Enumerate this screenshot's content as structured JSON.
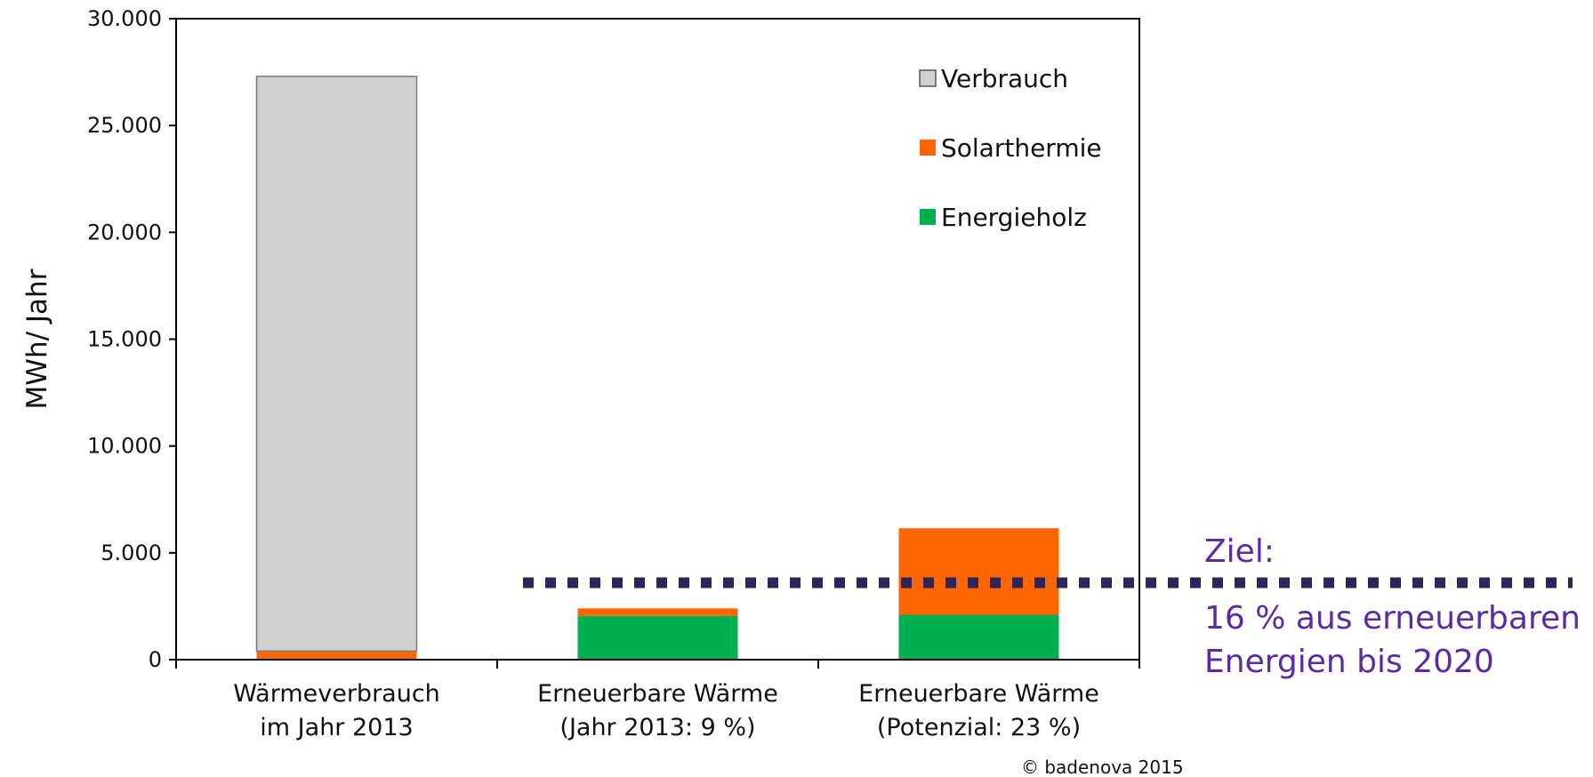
{
  "chart_data": {
    "type": "bar",
    "stacked": true,
    "categories": [
      [
        "Wärmeverbrauch",
        "im Jahr 2013"
      ],
      [
        "Erneuerbare Wärme",
        "(Jahr 2013: 9 %)"
      ],
      [
        "Erneuerbare Wärme",
        "(Potenzial: 23 %)"
      ]
    ],
    "series": [
      {
        "name": "Energieholz",
        "color": "#00b050",
        "values": [
          0,
          2050,
          2100
        ]
      },
      {
        "name": "Solarthermie",
        "color": "#ff6600",
        "values": [
          400,
          350,
          4050
        ]
      },
      {
        "name": "Verbrauch",
        "color": "#d0d0d0",
        "values": [
          26900,
          0,
          0
        ]
      }
    ],
    "legend_order": [
      "Verbrauch",
      "Solarthermie",
      "Energieholz"
    ],
    "legend_position": "top-right",
    "ylabel": "MWh/ Jahr",
    "ylim": [
      0,
      30000
    ],
    "yticks": [
      0,
      5000,
      10000,
      15000,
      20000,
      25000,
      30000
    ],
    "ytick_labels": [
      "0",
      "5.000",
      "10.000",
      "15.000",
      "20.000",
      "25.000",
      "30.000"
    ],
    "grid": false,
    "target_line": {
      "value": 3600,
      "color": "#2e2455",
      "style": "dotted",
      "label_lines": [
        "Ziel:",
        "16 % aus erneuerbaren",
        "Energien bis 2020"
      ]
    },
    "copyright": "© badenova  2015"
  }
}
